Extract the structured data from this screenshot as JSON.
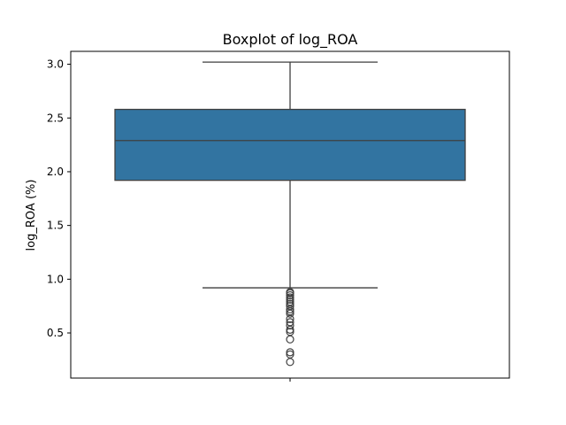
{
  "chart_data": {
    "type": "box",
    "title": "Boxplot of log_ROA",
    "xlabel": "",
    "ylabel": "log_ROA (%)",
    "ylim": [
      0.08,
      3.12
    ],
    "yticks": [
      0.5,
      1.0,
      1.5,
      2.0,
      2.5,
      3.0
    ],
    "ytick_labels": [
      "0.5",
      "1.0",
      "1.5",
      "2.0",
      "2.5",
      "3.0"
    ],
    "grid": false,
    "box": {
      "whisker_low": 0.92,
      "q1": 1.92,
      "median": 2.29,
      "q3": 2.58,
      "whisker_high": 3.02
    },
    "outliers": [
      0.88,
      0.87,
      0.85,
      0.83,
      0.81,
      0.79,
      0.77,
      0.75,
      0.72,
      0.7,
      0.68,
      0.63,
      0.6,
      0.57,
      0.53,
      0.51,
      0.44,
      0.32,
      0.3,
      0.23
    ],
    "colors": {
      "box_fill": "#3274a1",
      "line": "#3f3f3f",
      "axis": "#000000"
    }
  }
}
